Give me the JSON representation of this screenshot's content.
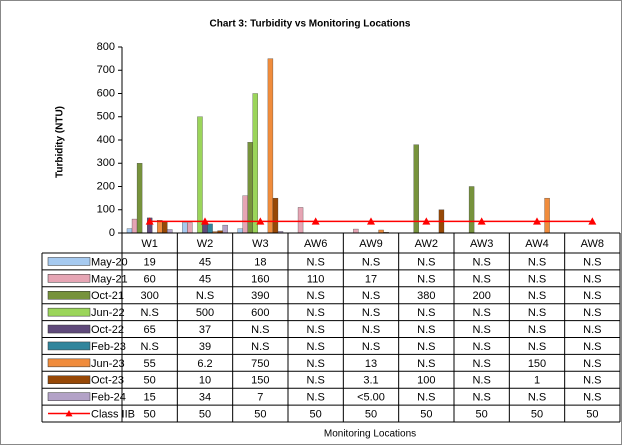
{
  "chart_data": {
    "type": "bar",
    "title": "Chart 3: Turbidity vs Monitoring Locations",
    "y_label": "Turbidity (NTU)",
    "x_label": "Monitoring Locations",
    "categories": [
      "W1",
      "W2",
      "W3",
      "AW6",
      "AW9",
      "AW2",
      "AW3",
      "AW4",
      "AW8"
    ],
    "ylim": [
      0,
      800
    ],
    "yticks": [
      0,
      100,
      200,
      300,
      400,
      500,
      600,
      700,
      800
    ],
    "grid": false,
    "series": [
      {
        "name": "May-20",
        "color": "#a6caf0",
        "values": [
          19,
          45,
          18,
          null,
          null,
          null,
          null,
          null,
          null
        ],
        "value_labels": [
          "19",
          "45",
          "18",
          "N.S",
          "N.S",
          "N.S",
          "N.S",
          "N.S",
          "N.S"
        ]
      },
      {
        "name": "May-21",
        "color": "#e6a5b4",
        "values": [
          60,
          45,
          160,
          110,
          17,
          null,
          null,
          null,
          null
        ],
        "value_labels": [
          "60",
          "45",
          "160",
          "110",
          "17",
          "N.S",
          "N.S",
          "N.S",
          "N.S"
        ]
      },
      {
        "name": "Oct-21",
        "color": "#77933c",
        "values": [
          300,
          null,
          390,
          null,
          null,
          380,
          200,
          null,
          null
        ],
        "value_labels": [
          "300",
          "N.S",
          "390",
          "N.S",
          "N.S",
          "380",
          "200",
          "N.S",
          "N.S"
        ]
      },
      {
        "name": "Jun-22",
        "color": "#9bd55a",
        "values": [
          null,
          500,
          600,
          null,
          null,
          null,
          null,
          null,
          null
        ],
        "value_labels": [
          "N.S",
          "500",
          "600",
          "N.S",
          "N.S",
          "N.S",
          "N.S",
          "N.S",
          "N.S"
        ]
      },
      {
        "name": "Oct-22",
        "color": "#604a7b",
        "values": [
          65,
          37,
          null,
          null,
          null,
          null,
          null,
          null,
          null
        ],
        "value_labels": [
          "65",
          "37",
          "N.S",
          "N.S",
          "N.S",
          "N.S",
          "N.S",
          "N.S",
          "N.S"
        ]
      },
      {
        "name": "Feb-23",
        "color": "#31859c",
        "values": [
          null,
          39,
          null,
          null,
          null,
          null,
          null,
          null,
          null
        ],
        "value_labels": [
          "N.S",
          "39",
          "N.S",
          "N.S",
          "N.S",
          "N.S",
          "N.S",
          "N.S",
          "N.S"
        ]
      },
      {
        "name": "Jun-23",
        "color": "#f08c3c",
        "values": [
          55,
          6.2,
          750,
          null,
          13,
          null,
          null,
          150,
          null
        ],
        "value_labels": [
          "55",
          "6.2",
          "750",
          "N.S",
          "13",
          "N.S",
          "N.S",
          "150",
          "N.S"
        ]
      },
      {
        "name": "Oct-23",
        "color": "#974806",
        "values": [
          50,
          10,
          150,
          null,
          3.1,
          100,
          null,
          1,
          null
        ],
        "value_labels": [
          "50",
          "10",
          "150",
          "N.S",
          "3.1",
          "100",
          "N.S",
          "1",
          "N.S"
        ]
      },
      {
        "name": "Feb-24",
        "color": "#b3a2c7",
        "values": [
          15,
          34,
          7,
          null,
          null,
          null,
          null,
          null,
          null
        ],
        "value_labels": [
          "15",
          "34",
          "7",
          "N.S",
          "<5.00",
          "N.S",
          "N.S",
          "N.S",
          "N.S"
        ]
      },
      {
        "name": "Class IIB",
        "color": "#ff0000",
        "type": "line",
        "marker": "triangle",
        "values": [
          50,
          50,
          50,
          50,
          50,
          50,
          50,
          50,
          50
        ],
        "value_labels": [
          "50",
          "50",
          "50",
          "50",
          "50",
          "50",
          "50",
          "50",
          "50"
        ]
      }
    ]
  }
}
